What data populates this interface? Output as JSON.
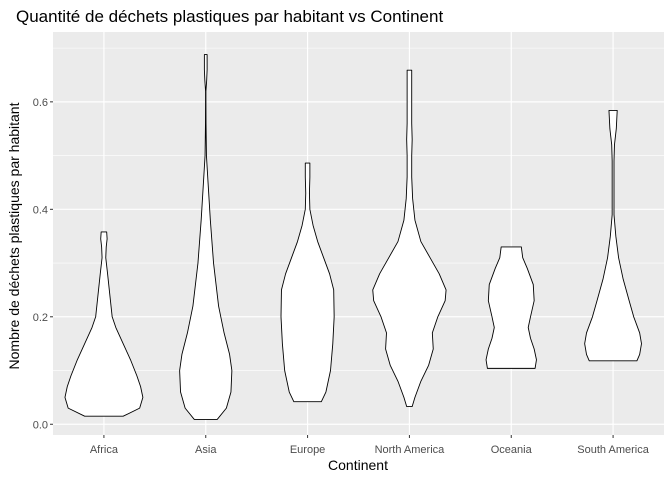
{
  "chart_data": {
    "type": "violin",
    "title": "Quantité de déchets plastiques par habitant vs Continent",
    "xlabel": "Continent",
    "ylabel": "Nombre de déchets plastiques par habitant",
    "ylim": [
      -0.02,
      0.73
    ],
    "yticks": [
      "0.0",
      "0.2",
      "0.4",
      "0.6"
    ],
    "grid": true,
    "panel_color": "#ebebeb",
    "grid_color": "#ffffff",
    "fill_color": "#ffffff",
    "stroke_color": "#000000",
    "categories": [
      "Africa",
      "Asia",
      "Europe",
      "North America",
      "Oceania",
      "South America"
    ],
    "violins": [
      {
        "category": "Africa",
        "min": 0.015,
        "max": 0.358,
        "profile": [
          [
            0.015,
            0.42
          ],
          [
            0.03,
            0.78
          ],
          [
            0.05,
            0.85
          ],
          [
            0.07,
            0.8
          ],
          [
            0.09,
            0.72
          ],
          [
            0.12,
            0.58
          ],
          [
            0.15,
            0.42
          ],
          [
            0.18,
            0.26
          ],
          [
            0.2,
            0.18
          ],
          [
            0.24,
            0.13
          ],
          [
            0.28,
            0.08
          ],
          [
            0.31,
            0.04
          ],
          [
            0.33,
            0.05
          ],
          [
            0.345,
            0.07
          ],
          [
            0.358,
            0.06
          ]
        ]
      },
      {
        "category": "Asia",
        "min": 0.009,
        "max": 0.688,
        "profile": [
          [
            0.009,
            0.25
          ],
          [
            0.03,
            0.45
          ],
          [
            0.06,
            0.55
          ],
          [
            0.1,
            0.57
          ],
          [
            0.13,
            0.52
          ],
          [
            0.17,
            0.4
          ],
          [
            0.22,
            0.28
          ],
          [
            0.3,
            0.17
          ],
          [
            0.38,
            0.1
          ],
          [
            0.45,
            0.05
          ],
          [
            0.5,
            0.015
          ],
          [
            0.56,
            0.006
          ],
          [
            0.6,
            0.004
          ],
          [
            0.62,
            0.004
          ],
          [
            0.64,
            0.02
          ],
          [
            0.66,
            0.03
          ],
          [
            0.688,
            0.03
          ]
        ]
      },
      {
        "category": "Europe",
        "min": 0.042,
        "max": 0.486,
        "profile": [
          [
            0.042,
            0.3
          ],
          [
            0.06,
            0.4
          ],
          [
            0.1,
            0.5
          ],
          [
            0.15,
            0.55
          ],
          [
            0.2,
            0.58
          ],
          [
            0.25,
            0.57
          ],
          [
            0.28,
            0.48
          ],
          [
            0.31,
            0.35
          ],
          [
            0.34,
            0.22
          ],
          [
            0.37,
            0.12
          ],
          [
            0.4,
            0.05
          ],
          [
            0.43,
            0.04
          ],
          [
            0.46,
            0.05
          ],
          [
            0.486,
            0.05
          ]
        ]
      },
      {
        "category": "North America",
        "min": 0.033,
        "max": 0.659,
        "profile": [
          [
            0.033,
            0.06
          ],
          [
            0.05,
            0.12
          ],
          [
            0.08,
            0.25
          ],
          [
            0.11,
            0.42
          ],
          [
            0.14,
            0.52
          ],
          [
            0.17,
            0.5
          ],
          [
            0.2,
            0.62
          ],
          [
            0.23,
            0.78
          ],
          [
            0.25,
            0.8
          ],
          [
            0.28,
            0.65
          ],
          [
            0.31,
            0.45
          ],
          [
            0.34,
            0.25
          ],
          [
            0.38,
            0.12
          ],
          [
            0.42,
            0.07
          ],
          [
            0.46,
            0.05
          ],
          [
            0.5,
            0.05
          ],
          [
            0.53,
            0.06
          ],
          [
            0.56,
            0.05
          ],
          [
            0.6,
            0.05
          ],
          [
            0.63,
            0.05
          ],
          [
            0.659,
            0.05
          ]
        ]
      },
      {
        "category": "Oceania",
        "min": 0.104,
        "max": 0.33,
        "profile": [
          [
            0.104,
            0.52
          ],
          [
            0.12,
            0.55
          ],
          [
            0.14,
            0.5
          ],
          [
            0.16,
            0.42
          ],
          [
            0.18,
            0.37
          ],
          [
            0.2,
            0.42
          ],
          [
            0.23,
            0.5
          ],
          [
            0.26,
            0.48
          ],
          [
            0.29,
            0.35
          ],
          [
            0.31,
            0.25
          ],
          [
            0.33,
            0.22
          ]
        ]
      },
      {
        "category": "South America",
        "min": 0.118,
        "max": 0.584,
        "profile": [
          [
            0.118,
            0.52
          ],
          [
            0.13,
            0.58
          ],
          [
            0.15,
            0.62
          ],
          [
            0.17,
            0.58
          ],
          [
            0.2,
            0.45
          ],
          [
            0.23,
            0.35
          ],
          [
            0.27,
            0.22
          ],
          [
            0.31,
            0.12
          ],
          [
            0.35,
            0.06
          ],
          [
            0.39,
            0.02
          ],
          [
            0.44,
            0.02
          ],
          [
            0.49,
            0.02
          ],
          [
            0.52,
            0.03
          ],
          [
            0.55,
            0.07
          ],
          [
            0.584,
            0.09
          ]
        ]
      }
    ]
  }
}
